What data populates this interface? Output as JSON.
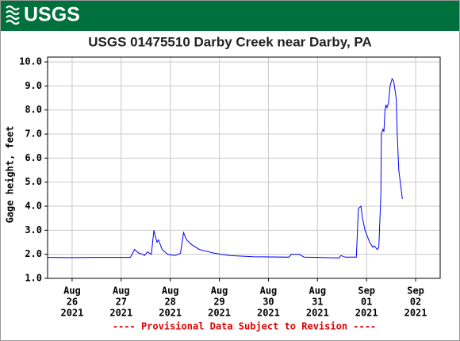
{
  "logo_text": "USGS",
  "chart_data": {
    "type": "line",
    "title": "USGS 01475510 Darby Creek near Darby, PA",
    "ylabel": "Gage height, feet",
    "annotation": "---- Provisional Data Subject to Revision ----",
    "color": "#0000ff",
    "grid": true,
    "x": [
      "2021-08-25 12:00",
      "2021-08-25 23:30",
      "2021-08-26 12:00",
      "2021-08-27 04:30",
      "2021-08-27 06:30",
      "2021-08-27 08:30",
      "2021-08-27 10:30",
      "2021-08-27 11:30",
      "2021-08-27 12:45",
      "2021-08-27 14:45",
      "2021-08-27 16:00",
      "2021-08-27 17:30",
      "2021-08-27 18:15",
      "2021-08-27 20:00",
      "2021-08-27 22:45",
      "2021-08-28 02:00",
      "2021-08-28 04:00",
      "2021-08-28 05:00",
      "2021-08-28 06:30",
      "2021-08-28 08:00",
      "2021-08-28 10:30",
      "2021-08-28 14:15",
      "2021-08-28 21:15",
      "2021-08-29 05:00",
      "2021-08-29 16:30",
      "2021-08-30 10:00",
      "2021-08-30 11:15",
      "2021-08-30 15:00",
      "2021-08-30 17:30",
      "2021-08-31 10:30",
      "2021-08-31 11:30",
      "2021-08-31 13:30",
      "2021-08-31 19:00",
      "2021-08-31 20:00",
      "2021-08-31 21:15",
      "2021-08-31 22:00",
      "2021-08-31 23:15",
      "2021-09-01 01:30",
      "2021-09-01 03:00",
      "2021-09-01 03:45",
      "2021-09-01 05:15",
      "2021-09-01 06:00",
      "2021-09-01 07:00",
      "2021-09-01 07:15",
      "2021-09-01 08:00",
      "2021-09-01 08:30",
      "2021-09-01 09:00",
      "2021-09-01 09:30",
      "2021-09-01 10:00",
      "2021-09-01 10:45",
      "2021-09-01 11:30",
      "2021-09-01 12:30",
      "2021-09-01 13:15",
      "2021-09-01 14:30",
      "2021-09-01 15:00",
      "2021-09-01 15:45",
      "2021-09-01 16:30",
      "2021-09-01 17:30"
    ],
    "values": [
      1.87,
      1.86,
      1.87,
      1.87,
      2.2,
      2.05,
      2.0,
      1.95,
      2.1,
      2.0,
      3.0,
      2.5,
      2.6,
      2.2,
      2.0,
      1.95,
      2.0,
      2.05,
      2.9,
      2.6,
      2.4,
      2.2,
      2.05,
      1.95,
      1.9,
      1.88,
      2.0,
      2.0,
      1.88,
      1.85,
      1.95,
      1.88,
      1.88,
      3.9,
      4.0,
      3.5,
      3.0,
      2.5,
      2.3,
      2.35,
      2.2,
      2.3,
      4.5,
      7.0,
      7.2,
      7.1,
      8.0,
      8.2,
      8.1,
      8.3,
      9.0,
      9.3,
      9.2,
      8.5,
      7.0,
      5.5,
      5.0,
      4.3
    ],
    "xlim": [
      "2021-08-25 12:00",
      "2021-09-02 12:00"
    ],
    "xticks": [
      {
        "value": "2021-08-26 00:00",
        "label": [
          "Aug",
          "26",
          "2021"
        ]
      },
      {
        "value": "2021-08-27 00:00",
        "label": [
          "Aug",
          "27",
          "2021"
        ]
      },
      {
        "value": "2021-08-28 00:00",
        "label": [
          "Aug",
          "28",
          "2021"
        ]
      },
      {
        "value": "2021-08-29 00:00",
        "label": [
          "Aug",
          "29",
          "2021"
        ]
      },
      {
        "value": "2021-08-30 00:00",
        "label": [
          "Aug",
          "30",
          "2021"
        ]
      },
      {
        "value": "2021-08-31 00:00",
        "label": [
          "Aug",
          "31",
          "2021"
        ]
      },
      {
        "value": "2021-09-01 00:00",
        "label": [
          "Sep",
          "01",
          "2021"
        ]
      },
      {
        "value": "2021-09-02 00:00",
        "label": [
          "Sep",
          "02",
          "2021"
        ]
      }
    ],
    "ylim": [
      1,
      10.2
    ],
    "yticks": [
      {
        "value": 1,
        "label": "1.0"
      },
      {
        "value": 2,
        "label": "2.0"
      },
      {
        "value": 3,
        "label": "3.0"
      },
      {
        "value": 4,
        "label": "4.0"
      },
      {
        "value": 5,
        "label": "5.0"
      },
      {
        "value": 6,
        "label": "6.0"
      },
      {
        "value": 7,
        "label": "7.0"
      },
      {
        "value": 8,
        "label": "8.0"
      },
      {
        "value": 9,
        "label": "9.0"
      },
      {
        "value": 10,
        "label": "10.0"
      }
    ]
  }
}
